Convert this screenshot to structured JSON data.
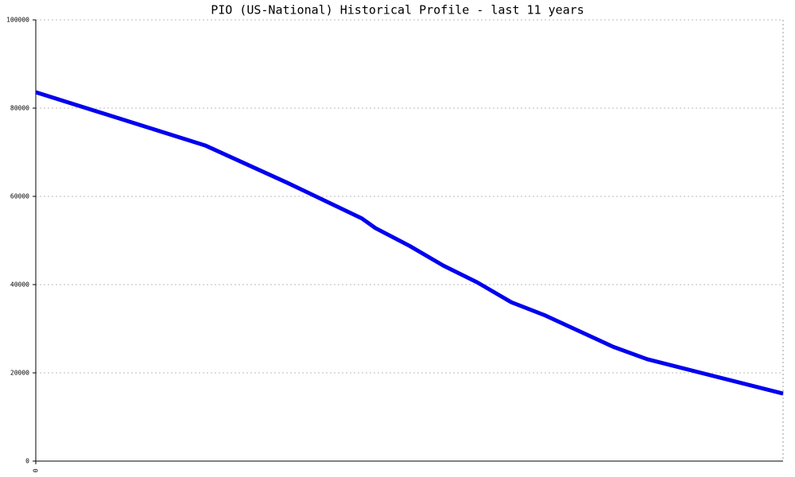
{
  "chart_data": {
    "type": "line",
    "title": "PIO (US-National) Historical Profile - last 11 years",
    "x": [
      0,
      2.5,
      3.7,
      4.8,
      5,
      5.5,
      6,
      6.5,
      7,
      7.5,
      8.5,
      9,
      11
    ],
    "series": [
      {
        "color": "#0000ee",
        "values": [
          83600,
          71500,
          63100,
          55000,
          52800,
          48800,
          44300,
          40500,
          36000,
          33000,
          25900,
          23100,
          15300
        ]
      }
    ],
    "xlim": [
      0,
      11
    ],
    "xticks": [
      0
    ],
    "ylim": [
      0,
      100000
    ],
    "yticks": [
      0,
      20000,
      40000,
      60000,
      80000,
      100000
    ],
    "grid": true
  }
}
